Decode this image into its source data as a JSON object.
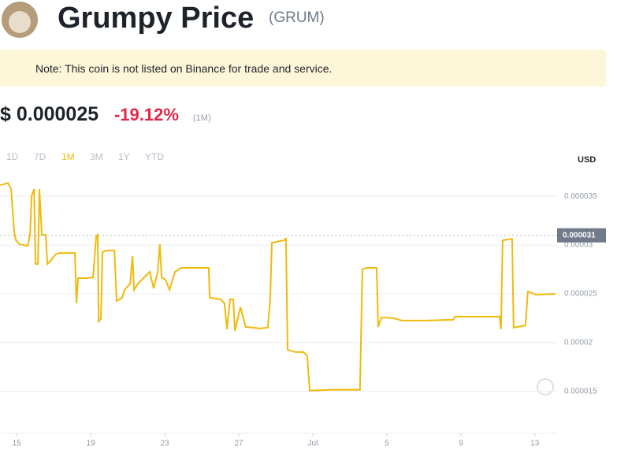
{
  "header": {
    "title": "Grumpy Price",
    "symbol": "(GRUM)"
  },
  "note": "Note: This coin is not listed on Binance for trade and service.",
  "price": {
    "value": "$ 0.000025",
    "change": "-19.12%",
    "period": "(1M)"
  },
  "ranges": [
    "1D",
    "7D",
    "1M",
    "3M",
    "1Y",
    "YTD"
  ],
  "currency": "USD",
  "chart_data": {
    "type": "line",
    "color": "#f0b90b",
    "grid": true,
    "x": [
      -0.89,
      -0.47,
      -0.3,
      -0.13,
      -0.04,
      0.17,
      0.6,
      0.72,
      0.81,
      0.94,
      1.02,
      1.15,
      1.23,
      1.36,
      1.57,
      1.66,
      1.87,
      2.09,
      2.3,
      2.51,
      3.15,
      3.23,
      3.32,
      3.79,
      4.13,
      4.3,
      4.38,
      4.43,
      4.55,
      4.64,
      4.85,
      5.28,
      5.4,
      5.7,
      5.83,
      6.13,
      6.26,
      6.34,
      6.55,
      6.77,
      7.19,
      7.4,
      7.62,
      7.74,
      7.83,
      8.04,
      8.26,
      8.55,
      8.89,
      10.38,
      10.43,
      11.02,
      11.23,
      11.36,
      11.53,
      11.7,
      11.79,
      12.09,
      12.38,
      13.15,
      13.57,
      13.7,
      13.79,
      14.43,
      14.55,
      14.64,
      15.06,
      15.49,
      15.7,
      15.83,
      16.98,
      18.55,
      18.68,
      18.89,
      19.45,
      19.53,
      19.7,
      20.38,
      20.81,
      22.09,
      23.57,
      23.7,
      26.09,
      26.17,
      26.26,
      26.77,
      26.85,
      27.49,
      27.62,
      28.04,
      29.11
    ],
    "values": [
      3.613e-05,
      3.637e-05,
      3.573e-05,
      3.129e-05,
      3.048e-05,
      3.008e-05,
      2.992e-05,
      3.105e-05,
      3.508e-05,
      3.573e-05,
      2.806e-05,
      2.806e-05,
      3.573e-05,
      3.105e-05,
      3.105e-05,
      2.806e-05,
      2.847e-05,
      2.903e-05,
      2.919e-05,
      2.919e-05,
      2.919e-05,
      2.403e-05,
      2.661e-05,
      2.661e-05,
      2.669e-05,
      3.089e-05,
      3.105e-05,
      2.218e-05,
      2.242e-05,
      2.927e-05,
      2.944e-05,
      2.944e-05,
      2.427e-05,
      2.46e-05,
      2.54e-05,
      2.605e-05,
      2.887e-05,
      2.54e-05,
      2.605e-05,
      2.645e-05,
      2.726e-05,
      2.556e-05,
      2.726e-05,
      3.008e-05,
      2.669e-05,
      2.645e-05,
      2.54e-05,
      2.726e-05,
      2.766e-05,
      2.766e-05,
      2.46e-05,
      2.444e-05,
      2.403e-05,
      2.137e-05,
      2.444e-05,
      2.444e-05,
      2.121e-05,
      2.363e-05,
      2.161e-05,
      2.145e-05,
      2.153e-05,
      2.444e-05,
      3.024e-05,
      3.048e-05,
      3.065e-05,
      1.927e-05,
      1.903e-05,
      1.903e-05,
      1.863e-05,
      1.508e-05,
      1.516e-05,
      1.516e-05,
      2.75e-05,
      2.766e-05,
      2.766e-05,
      2.161e-05,
      2.258e-05,
      2.25e-05,
      2.226e-05,
      2.226e-05,
      2.234e-05,
      2.266e-05,
      2.266e-05,
      2.137e-05,
      3.048e-05,
      3.065e-05,
      2.153e-05,
      2.177e-05,
      2.524e-05,
      2.492e-05,
      2.5e-05
    ],
    "xlim": [
      -0.9,
      29.2
    ],
    "xticks": [
      {
        "value": 0,
        "label": "15"
      },
      {
        "value": 4,
        "label": "19"
      },
      {
        "value": 8,
        "label": "23"
      },
      {
        "value": 12,
        "label": "27"
      },
      {
        "value": 16,
        "label": "Jul"
      },
      {
        "value": 20,
        "label": "5"
      },
      {
        "value": 24,
        "label": "9"
      },
      {
        "value": 28,
        "label": "13"
      }
    ],
    "ylim": [
      1.07e-05,
      3.76e-05
    ],
    "yticks": [
      1.5e-05,
      2e-05,
      2.5e-05,
      3e-05,
      3.5e-05
    ],
    "last_price": 3.1e-05
  }
}
